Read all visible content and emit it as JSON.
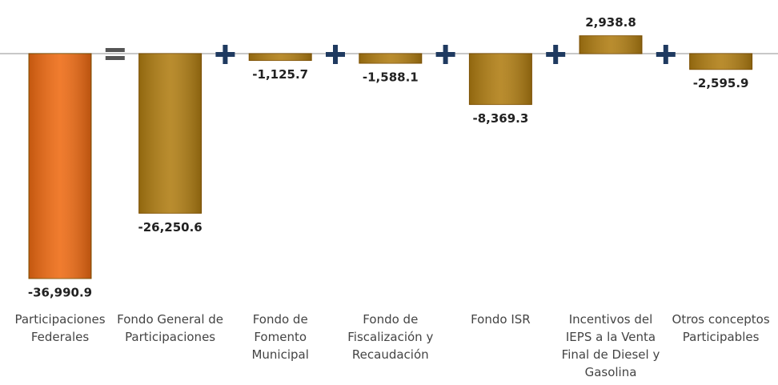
{
  "chart_data": {
    "type": "bar",
    "categories": [
      "Participaciones Federales",
      "Fondo General de Participaciones",
      "Fondo de Fomento Municipal",
      "Fondo de Fiscalización y Recaudación",
      "Fondo ISR",
      "Incentivos del IEPS a la Venta Final de Diesel y Gasolina",
      "Otros conceptos Participables"
    ],
    "values": [
      -36990.9,
      -26250.6,
      -1125.7,
      -1588.1,
      -8369.3,
      2938.8,
      -2595.9
    ],
    "value_labels": [
      "-36,990.9",
      "-26,250.6",
      "-1,125.7",
      "-1,588.1",
      "-8,369.3",
      "2,938.8",
      "-2,595.9"
    ],
    "colors": [
      "#ee6a12",
      "#b07d12",
      "#b07d12",
      "#b07d12",
      "#b07d12",
      "#b07d12",
      "#b07d12"
    ]
  }
}
